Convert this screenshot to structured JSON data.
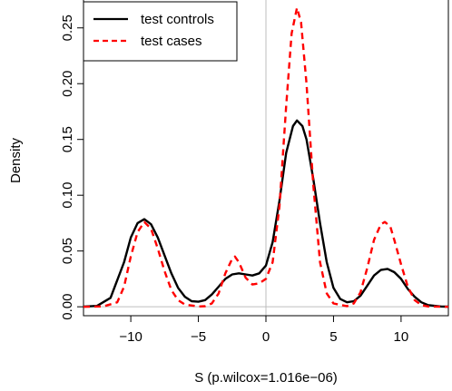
{
  "chart_data": {
    "type": "line",
    "title": "",
    "xlabel": "S (p.wilcox=1.016e−06)",
    "ylabel": "Density",
    "xlim": [
      -13.5,
      13.5
    ],
    "ylim": [
      -0.008,
      0.275
    ],
    "x_ticks": [
      -10,
      -5,
      0,
      5,
      10
    ],
    "x_tick_labels": [
      "−10",
      "−5",
      "0",
      "5",
      "10"
    ],
    "y_ticks": [
      0.0,
      0.05,
      0.1,
      0.15,
      0.2,
      0.25
    ],
    "y_tick_labels": [
      "0.00",
      "0.05",
      "0.10",
      "0.15",
      "0.20",
      "0.25"
    ],
    "vline_x": 0,
    "hline_y": 0,
    "legend": {
      "position": "top-left"
    },
    "series": [
      {
        "name": "test controls",
        "color": "#000000",
        "dash": "solid",
        "points": [
          [
            -13.5,
            0.0002
          ],
          [
            -12.5,
            0.0008
          ],
          [
            -11.5,
            0.008
          ],
          [
            -10.5,
            0.04
          ],
          [
            -10,
            0.062
          ],
          [
            -9.5,
            0.075
          ],
          [
            -9,
            0.0785
          ],
          [
            -8.5,
            0.074
          ],
          [
            -8,
            0.062
          ],
          [
            -7.5,
            0.046
          ],
          [
            -7,
            0.03
          ],
          [
            -6.5,
            0.017
          ],
          [
            -6,
            0.009
          ],
          [
            -5.5,
            0.005
          ],
          [
            -5,
            0.0045
          ],
          [
            -4.5,
            0.006
          ],
          [
            -4,
            0.011
          ],
          [
            -3.5,
            0.018
          ],
          [
            -3,
            0.025
          ],
          [
            -2.5,
            0.029
          ],
          [
            -2,
            0.03
          ],
          [
            -1.5,
            0.029
          ],
          [
            -1,
            0.028
          ],
          [
            -0.5,
            0.03
          ],
          [
            0,
            0.037
          ],
          [
            0.5,
            0.058
          ],
          [
            1,
            0.095
          ],
          [
            1.5,
            0.138
          ],
          [
            2,
            0.162
          ],
          [
            2.3,
            0.167
          ],
          [
            2.7,
            0.162
          ],
          [
            3,
            0.15
          ],
          [
            3.5,
            0.115
          ],
          [
            4,
            0.075
          ],
          [
            4.5,
            0.04
          ],
          [
            5,
            0.017
          ],
          [
            5.5,
            0.007
          ],
          [
            6,
            0.004
          ],
          [
            6.5,
            0.005
          ],
          [
            7,
            0.01
          ],
          [
            7.5,
            0.019
          ],
          [
            8,
            0.028
          ],
          [
            8.5,
            0.033
          ],
          [
            9,
            0.034
          ],
          [
            9.5,
            0.031
          ],
          [
            10,
            0.025
          ],
          [
            10.5,
            0.016
          ],
          [
            11,
            0.009
          ],
          [
            11.5,
            0.004
          ],
          [
            12,
            0.0015
          ],
          [
            13,
            0.0002
          ],
          [
            13.5,
            0.0001
          ]
        ]
      },
      {
        "name": "test cases",
        "color": "#ff0000",
        "dash": "dashed",
        "points": [
          [
            -13.5,
            0.0
          ],
          [
            -12,
            0.0004
          ],
          [
            -11,
            0.004
          ],
          [
            -10.5,
            0.018
          ],
          [
            -10,
            0.045
          ],
          [
            -9.5,
            0.067
          ],
          [
            -9,
            0.076
          ],
          [
            -8.5,
            0.07
          ],
          [
            -8,
            0.052
          ],
          [
            -7.5,
            0.032
          ],
          [
            -7,
            0.015
          ],
          [
            -6.5,
            0.006
          ],
          [
            -6,
            0.002
          ],
          [
            -5,
            0.0003
          ],
          [
            -4.5,
            0.0005
          ],
          [
            -4,
            0.003
          ],
          [
            -3.5,
            0.012
          ],
          [
            -3,
            0.03
          ],
          [
            -2.5,
            0.043
          ],
          [
            -2.3,
            0.045
          ],
          [
            -2,
            0.04
          ],
          [
            -1.5,
            0.026
          ],
          [
            -1,
            0.02
          ],
          [
            -0.5,
            0.021
          ],
          [
            0,
            0.025
          ],
          [
            0.5,
            0.04
          ],
          [
            1,
            0.09
          ],
          [
            1.5,
            0.18
          ],
          [
            1.9,
            0.245
          ],
          [
            2.3,
            0.268
          ],
          [
            2.6,
            0.255
          ],
          [
            3,
            0.2
          ],
          [
            3.5,
            0.11
          ],
          [
            4,
            0.04
          ],
          [
            4.5,
            0.012
          ],
          [
            5,
            0.003
          ],
          [
            6,
            0.0005
          ],
          [
            6.5,
            0.003
          ],
          [
            7,
            0.013
          ],
          [
            7.5,
            0.035
          ],
          [
            8,
            0.06
          ],
          [
            8.5,
            0.074
          ],
          [
            8.8,
            0.076
          ],
          [
            9.2,
            0.072
          ],
          [
            9.5,
            0.06
          ],
          [
            10,
            0.038
          ],
          [
            10.5,
            0.018
          ],
          [
            11,
            0.006
          ],
          [
            11.5,
            0.0015
          ],
          [
            12,
            0.0003
          ],
          [
            13.5,
            0.0
          ]
        ]
      }
    ]
  }
}
